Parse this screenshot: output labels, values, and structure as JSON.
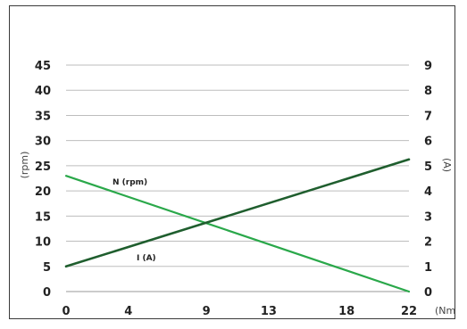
{
  "chart_data": {
    "type": "line",
    "title": "",
    "xlabel": "(Nm)",
    "ylabel_left": "(rpm)",
    "ylabel_right": "(A)",
    "x_ticks": [
      "0",
      "4",
      "9",
      "13",
      "18",
      "22"
    ],
    "x_range": [
      0,
      22
    ],
    "y_left_ticks": [
      "0",
      "5",
      "10",
      "15",
      "20",
      "25",
      "30",
      "35",
      "40",
      "45"
    ],
    "y_left_range": [
      0,
      45
    ],
    "y_right_ticks": [
      "0",
      "1",
      "2",
      "3",
      "4",
      "5",
      "6",
      "7",
      "8",
      "9"
    ],
    "y_right_range": [
      0,
      9
    ],
    "grid": true,
    "series": [
      {
        "name": "N (rpm)",
        "axis": "left",
        "color": "#2aa84a",
        "x": [
          0,
          22
        ],
        "y": [
          23,
          0
        ]
      },
      {
        "name": "I (A)",
        "axis": "right",
        "color": "#1f5e2e",
        "x": [
          0,
          22
        ],
        "y": [
          1,
          5.25
        ]
      }
    ],
    "grid_color": "#bdbdbd",
    "axis_color": "#9a9a9a"
  }
}
